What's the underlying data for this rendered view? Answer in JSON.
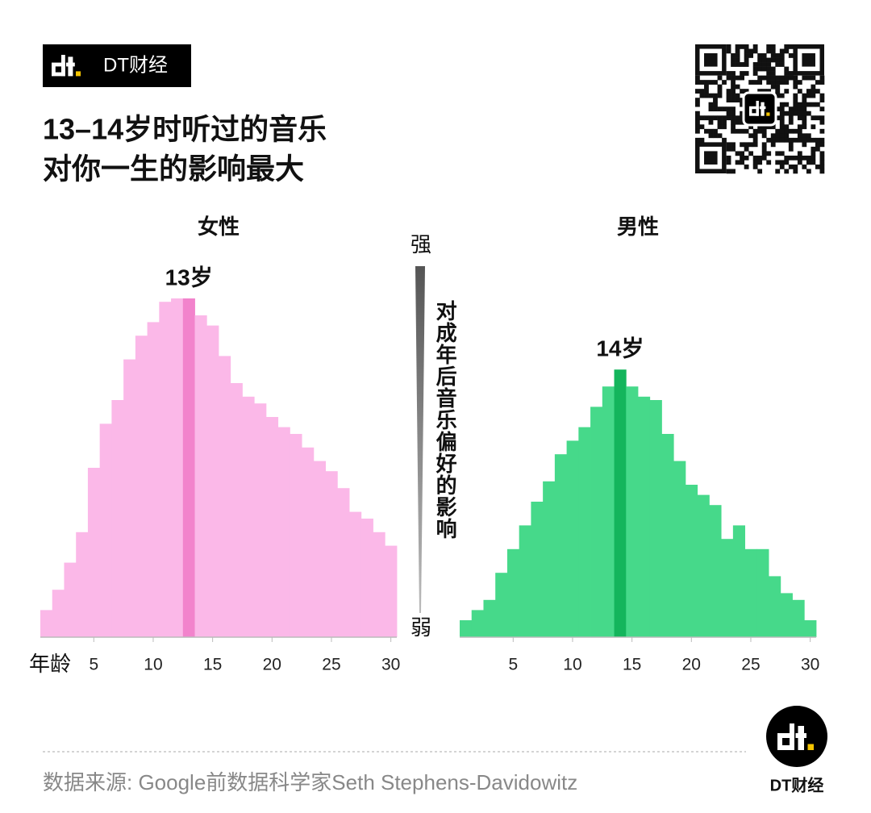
{
  "header": {
    "brand": "DT财经",
    "title": [
      "13–14岁时听过的音乐",
      "对你一生的影响最大"
    ]
  },
  "legend": {
    "high": "强",
    "label": "对成年后音乐偏好的影响",
    "low": "弱"
  },
  "source": "数据来源: Google前数据科学家Seth Stephens-Davidowitz",
  "footer_brand": "DT财经",
  "chart_data": [
    {
      "type": "bar",
      "title": "女性",
      "xlabel": "年龄",
      "x": [
        1,
        2,
        3,
        4,
        5,
        6,
        7,
        8,
        9,
        10,
        11,
        12,
        13,
        14,
        15,
        16,
        17,
        18,
        19,
        20,
        21,
        22,
        23,
        24,
        25,
        26,
        27,
        28,
        29,
        30
      ],
      "values": [
        8,
        14,
        22,
        31,
        50,
        63,
        70,
        82,
        89,
        93,
        99,
        100,
        100,
        95,
        92,
        83,
        75,
        71,
        69,
        65,
        62,
        60,
        56,
        52,
        49,
        44,
        37,
        35,
        31,
        27
      ],
      "color": "#fbb8e8",
      "highlight_color": "#f283cc",
      "annotation": {
        "text": "13岁",
        "x": 13
      },
      "xlim": [
        0.5,
        30.5
      ],
      "xticks": [
        5,
        10,
        15,
        20,
        25,
        30
      ],
      "ylim": [
        0,
        100
      ]
    },
    {
      "type": "bar",
      "title": "男性",
      "x": [
        1,
        2,
        3,
        4,
        5,
        6,
        7,
        8,
        9,
        10,
        11,
        12,
        13,
        14,
        15,
        16,
        17,
        18,
        19,
        20,
        21,
        22,
        23,
        24,
        25,
        26,
        27,
        28,
        29,
        30
      ],
      "values": [
        5,
        8,
        11,
        19,
        26,
        33,
        40,
        46,
        54,
        58,
        62,
        68,
        74,
        79,
        74,
        71,
        70,
        60,
        52,
        45,
        42,
        39,
        29,
        33,
        26,
        26,
        18,
        13,
        11,
        5
      ],
      "color": "#46d98a",
      "highlight_color": "#14b55c",
      "annotation": {
        "text": "14岁",
        "x": 14
      },
      "xlim": [
        0.5,
        30.5
      ],
      "xticks": [
        5,
        10,
        15,
        20,
        25,
        30
      ],
      "ylim": [
        0,
        100
      ]
    }
  ]
}
